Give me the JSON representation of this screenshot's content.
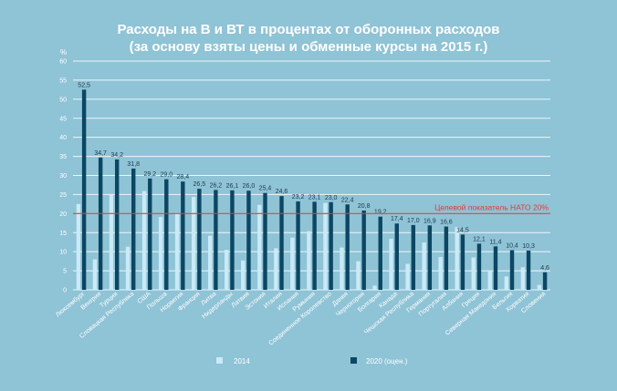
{
  "chart_data": {
    "type": "bar",
    "title_lines": [
      "Расходы на В и ВТ в процентах от оборонных расходов",
      "(за основу взяты цены и обменные курсы на 2015 г.)"
    ],
    "ylabel": "%",
    "ylim": [
      0,
      60
    ],
    "yticks": [
      0,
      5,
      10,
      15,
      20,
      25,
      30,
      35,
      40,
      45,
      50,
      55,
      60
    ],
    "grid": true,
    "legend_position": "bottom",
    "categories": [
      "Люксембург",
      "Венгрия",
      "Турция",
      "Словацкая Республика",
      "США",
      "Польша",
      "Норвегия",
      "Франция",
      "Литва",
      "Нидерланды",
      "Латвия",
      "Эстония",
      "Италия",
      "Испания",
      "Румыния",
      "Соединенное Королевство",
      "Дания",
      "Черногория",
      "Болгария",
      "Канада",
      "Чешская Республика",
      "Германия",
      "Португалия",
      "Албания",
      "Греция",
      "Северная Македония",
      "Бельгия",
      "Хорватия",
      "Словения"
    ],
    "series": [
      {
        "name": "2014",
        "color": "#c9eaf6",
        "values": [
          22.5,
          8.0,
          25.0,
          11.3,
          25.9,
          19.1,
          20.2,
          24.4,
          14.2,
          10.5,
          7.7,
          22.3,
          10.9,
          13.7,
          15.4,
          22.8,
          11.1,
          7.5,
          1.1,
          13.4,
          6.8,
          12.4,
          8.6,
          16.5,
          8.5,
          5.0,
          3.5,
          5.9,
          1.3
        ]
      },
      {
        "name": "2020 (оцен.)",
        "color": "#0b4663",
        "values": [
          52.5,
          34.7,
          34.2,
          31.8,
          29.2,
          29.0,
          28.4,
          26.5,
          26.2,
          26.1,
          26.0,
          25.4,
          24.6,
          23.2,
          23.1,
          23.0,
          22.4,
          20.8,
          19.2,
          17.4,
          17.0,
          16.9,
          16.6,
          14.5,
          12.1,
          11.4,
          10.4,
          10.3,
          4.6
        ],
        "labels": [
          "52,5",
          "34,7",
          "34,2",
          "31,8",
          "29,2",
          "29,0",
          "28,4",
          "26,5",
          "26,2",
          "26,1",
          "26,0",
          "25,4",
          "24,6",
          "23,2",
          "23,1",
          "23,0",
          "22,4",
          "20,8",
          "19,2",
          "17,4",
          "17,0",
          "16,9",
          "16,6",
          "14,5",
          "12,1",
          "11,4",
          "10,4",
          "10,3",
          "4,6"
        ]
      }
    ],
    "annotations": [
      {
        "text": "Целевой показатель НАТО 20%",
        "y": 20,
        "color": "#e03a3a"
      }
    ]
  }
}
